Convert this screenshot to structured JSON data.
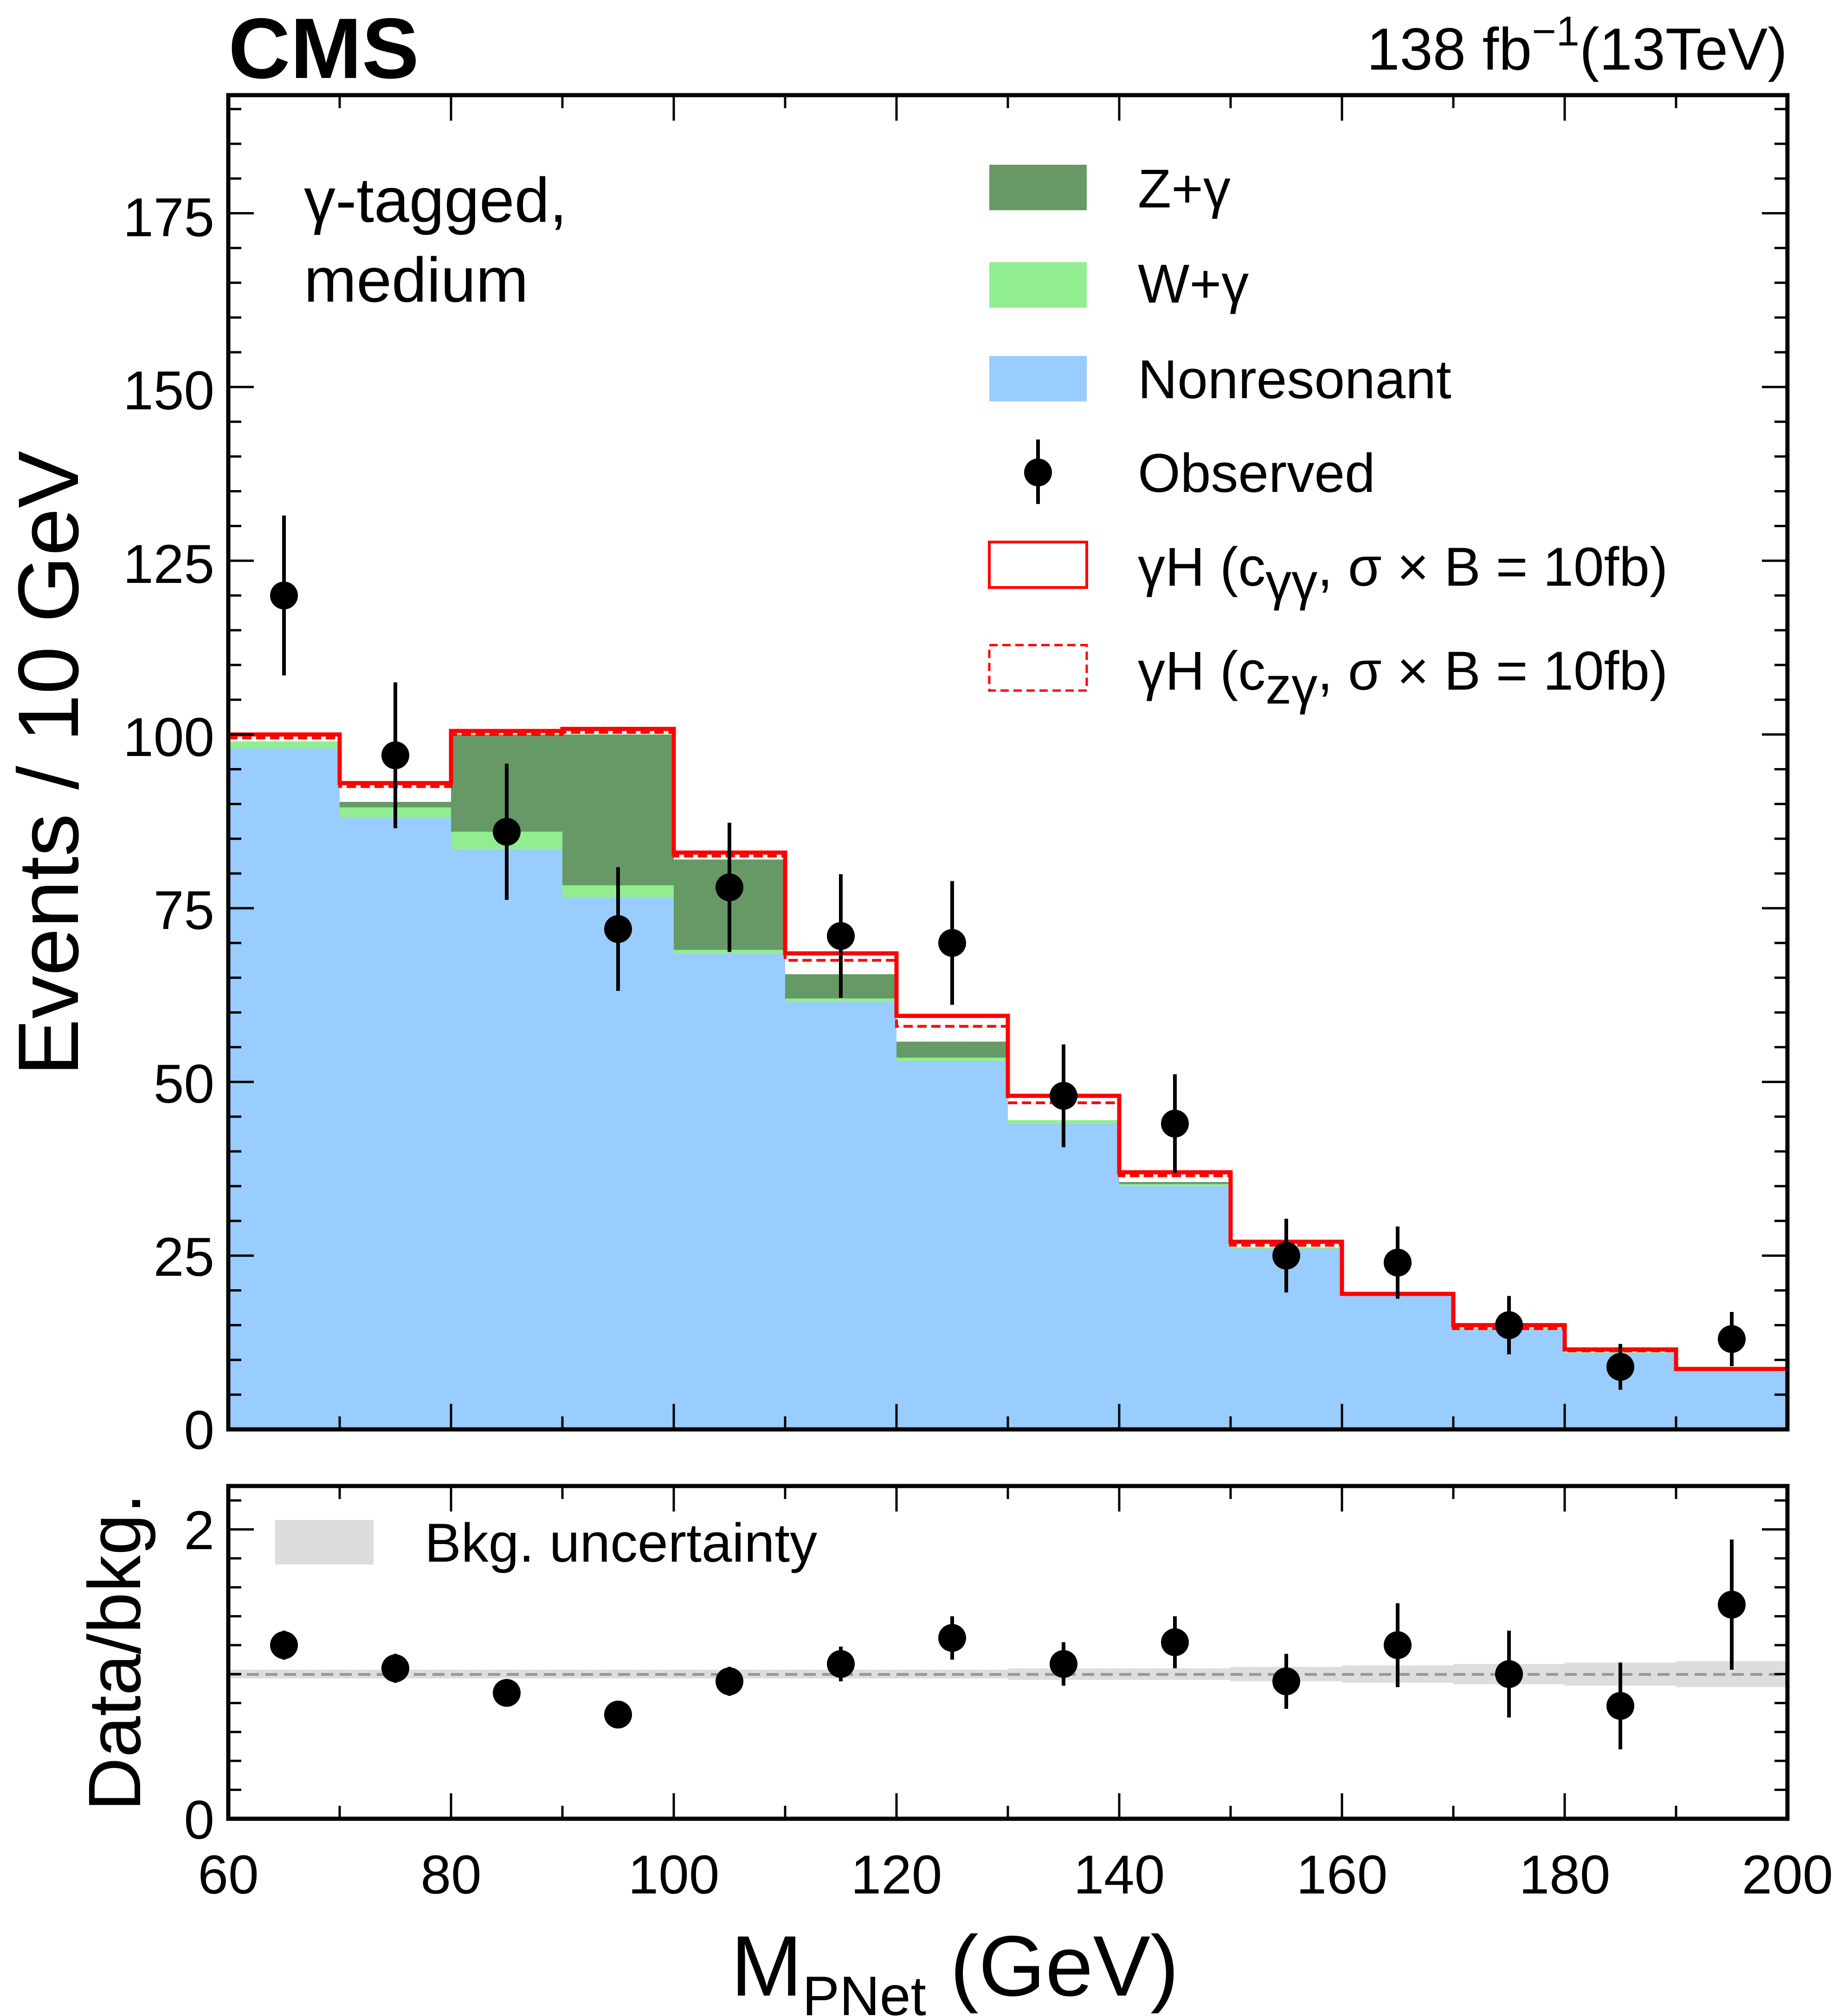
{
  "header": {
    "experiment": "CMS",
    "lumi_value": "138 fb",
    "lumi_exp": "−1",
    "lumi_energy": "(13TeV)"
  },
  "region_label": [
    "γ-tagged,",
    "medium"
  ],
  "colors": {
    "zgamma": "#669966",
    "wgamma": "#90ee90",
    "nonres": "#99ccff",
    "signal": "#ff0000",
    "bkg_unc": "#cccccc",
    "data": "#000000"
  },
  "legend": {
    "zgamma": "Z+γ",
    "wgamma": "W+γ",
    "nonres": "Nonresonant",
    "observed": "Observed",
    "sig_gg_prefix": "γH (c",
    "sig_gg_sub": "γγ",
    "sig_gg_suffix": ",  σ × B = 10fb)",
    "sig_zg_prefix": "γH (c",
    "sig_zg_sub": "zγ",
    "sig_zg_suffix": ",  σ × B = 10fb)",
    "bkg_unc": "Bkg. uncertainty"
  },
  "axes": {
    "main_ylabel": "Events / 10 GeV",
    "ratio_ylabel": "Data/bkg.",
    "xlabel_main": "M",
    "xlabel_sub": "PNet",
    "xlabel_unit": " (GeV)",
    "x_ticks": [
      "60",
      "80",
      "100",
      "120",
      "140",
      "160",
      "180",
      "200"
    ],
    "main_y_ticks": [
      "0",
      "25",
      "50",
      "75",
      "100",
      "125",
      "150",
      "175"
    ],
    "ratio_y_ticks": [
      "0",
      "2"
    ]
  },
  "chart_data": [
    {
      "type": "bar",
      "stacked": true,
      "xlim": [
        60,
        200
      ],
      "ylim": [
        0,
        192
      ],
      "xlabel": "M_PNet (GeV)",
      "ylabel": "Events / 10 GeV",
      "legend_position": "top-right",
      "bin_edges": [
        60,
        70,
        80,
        90,
        100,
        110,
        120,
        130,
        140,
        150,
        160,
        170,
        180,
        190,
        200
      ],
      "series": [
        {
          "name": "Nonresonant",
          "values": [
            98,
            88,
            83.5,
            76.5,
            68.5,
            61.5,
            53,
            44,
            35,
            26,
            19.5,
            14.5,
            11,
            8.5
          ]
        },
        {
          "name": "W+γ",
          "values": [
            1,
            1.5,
            2.5,
            1.8,
            0.5,
            0.5,
            0.5,
            0.5,
            0.3,
            0.2,
            0.1,
            0.1,
            0.1,
            0.1
          ]
        },
        {
          "name": "Z+γ",
          "values": [
            0,
            0.8,
            14,
            21.7,
            13,
            3.5,
            2.3,
            0,
            0.3,
            0,
            0,
            0,
            0,
            0
          ]
        },
        {
          "name": "γH (cγγ,  σ × B = 10fb)",
          "type": "step",
          "values": [
            100,
            93,
            100.5,
            100.8,
            83,
            68.5,
            59.5,
            48,
            37,
            27,
            19.5,
            15,
            11.5,
            8.7
          ]
        },
        {
          "name": "γH (czγ,  σ × B = 10fb)",
          "type": "step",
          "values": [
            99.5,
            92.5,
            100,
            100.3,
            82.5,
            67.5,
            58,
            47,
            36.5,
            26.5,
            19.5,
            14.5,
            11.3,
            8.7
          ]
        },
        {
          "name": "Observed",
          "type": "scatter",
          "x": [
            65,
            75,
            85,
            95,
            105,
            115,
            125,
            135,
            145,
            155,
            165,
            175,
            185,
            195
          ],
          "y": [
            120,
            97,
            86,
            72,
            78,
            71,
            70,
            48,
            44,
            25,
            24,
            15,
            9,
            13
          ],
          "yerr": [
            11.5,
            10.5,
            9.8,
            8.9,
            9.3,
            8.9,
            8.9,
            7.4,
            7.1,
            5.3,
            5.2,
            4.2,
            3.3,
            3.9
          ]
        }
      ]
    },
    {
      "type": "scatter",
      "xlim": [
        60,
        200
      ],
      "ylim": [
        0,
        2.3
      ],
      "xlabel": "M_PNet (GeV)",
      "ylabel": "Data/bkg.",
      "reference_line": 1,
      "legend_position": "top-left",
      "series": [
        {
          "name": "Data/bkg.",
          "x": [
            65,
            75,
            85,
            95,
            105,
            115,
            125,
            135,
            145,
            155,
            165,
            175,
            185,
            195
          ],
          "y": [
            1.2,
            1.04,
            0.87,
            0.72,
            0.95,
            1.07,
            1.25,
            1.07,
            1.22,
            0.95,
            1.2,
            1.0,
            0.78,
            1.48
          ],
          "yerr": [
            0.1,
            0.1,
            0.04,
            0.04,
            0.1,
            0.12,
            0.15,
            0.15,
            0.18,
            0.19,
            0.29,
            0.3,
            0.3,
            0.45
          ]
        },
        {
          "name": "Bkg. uncertainty",
          "type": "band",
          "values": [
            0.03,
            0.03,
            0.03,
            0.03,
            0.03,
            0.03,
            0.03,
            0.04,
            0.04,
            0.05,
            0.06,
            0.07,
            0.08,
            0.09
          ]
        }
      ]
    }
  ]
}
